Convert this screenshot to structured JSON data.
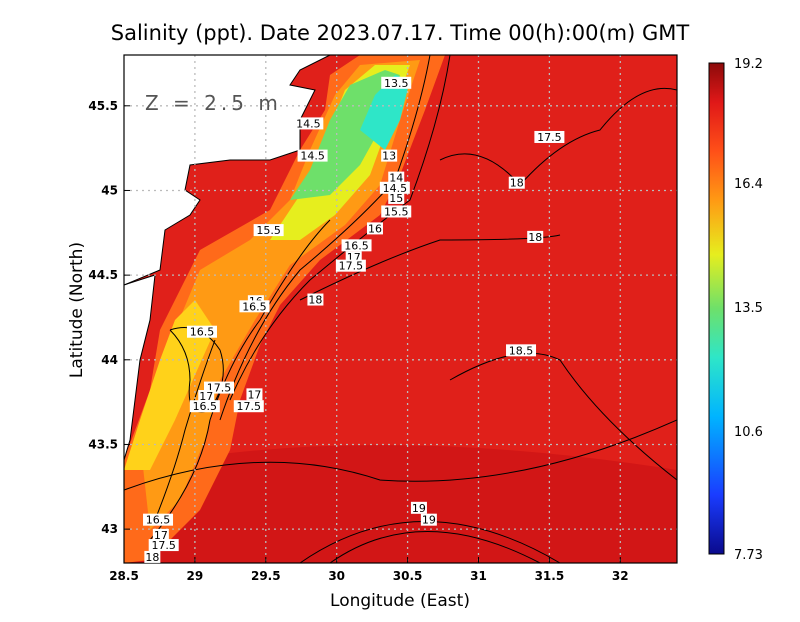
{
  "chart_data": {
    "type": "heatmap",
    "title": "Salinity (ppt). Date 2023.07.17. Time 00(h):00(m) GMT",
    "xlabel": "Longitude (East)",
    "ylabel": "Latitude (North)",
    "depth_label": "Z = 2.5 m",
    "xlim": [
      28.5,
      32.4
    ],
    "ylim": [
      42.8,
      45.8
    ],
    "x_ticks": [
      28.5,
      29,
      29.5,
      30,
      30.5,
      31,
      31.5,
      32
    ],
    "x_tick_labels": [
      "28.5",
      "29",
      "29.5",
      "30",
      "30.5",
      "31",
      "31.5",
      "32"
    ],
    "y_ticks": [
      43,
      43.5,
      44,
      44.5,
      45,
      45.5
    ],
    "y_tick_labels": [
      "43",
      "43.5",
      "44",
      "44.5",
      "45",
      "45.5"
    ],
    "grid": true,
    "colorbar": {
      "min": 7.73,
      "max": 19.2,
      "tick_values": [
        19.2,
        16.4,
        13.5,
        10.6,
        7.73
      ],
      "tick_labels": [
        "19.2",
        "16.4",
        "13.5",
        "10.6",
        "7.73"
      ],
      "colors": [
        "#0a0a8c",
        "#1a3cff",
        "#00b4ff",
        "#2ee6c8",
        "#6ee06a",
        "#e6ee1e",
        "#ff9a14",
        "#ff5018",
        "#e01818",
        "#8c0a0a"
      ]
    },
    "land_color": "#ffffff",
    "contour_labels": [
      {
        "text": "13.5",
        "lon": 30.42,
        "lat": 45.63
      },
      {
        "text": "14.5",
        "lon": 29.8,
        "lat": 45.39
      },
      {
        "text": "14.5",
        "lon": 29.83,
        "lat": 45.2
      },
      {
        "text": "13",
        "lon": 30.37,
        "lat": 45.2
      },
      {
        "text": "14",
        "lon": 30.42,
        "lat": 45.07
      },
      {
        "text": "14.5",
        "lon": 30.41,
        "lat": 45.01
      },
      {
        "text": "15",
        "lon": 30.42,
        "lat": 44.95
      },
      {
        "text": "15.5",
        "lon": 30.42,
        "lat": 44.87
      },
      {
        "text": "16",
        "lon": 30.27,
        "lat": 44.77
      },
      {
        "text": "15.5",
        "lon": 29.52,
        "lat": 44.76
      },
      {
        "text": "16.5",
        "lon": 30.14,
        "lat": 44.67
      },
      {
        "text": "17",
        "lon": 30.12,
        "lat": 44.6
      },
      {
        "text": "17.5",
        "lon": 30.1,
        "lat": 44.55
      },
      {
        "text": "17.5",
        "lon": 31.5,
        "lat": 45.31
      },
      {
        "text": "18",
        "lon": 31.27,
        "lat": 45.04
      },
      {
        "text": "18",
        "lon": 31.4,
        "lat": 44.72
      },
      {
        "text": "18",
        "lon": 29.85,
        "lat": 44.35
      },
      {
        "text": "16",
        "lon": 29.43,
        "lat": 44.34
      },
      {
        "text": "16.5",
        "lon": 29.42,
        "lat": 44.31
      },
      {
        "text": "16.5",
        "lon": 29.05,
        "lat": 44.16
      },
      {
        "text": "18.5",
        "lon": 31.3,
        "lat": 44.05
      },
      {
        "text": "17.5",
        "lon": 29.17,
        "lat": 43.83
      },
      {
        "text": "17",
        "lon": 29.08,
        "lat": 43.78
      },
      {
        "text": "17",
        "lon": 29.42,
        "lat": 43.79
      },
      {
        "text": "16.5",
        "lon": 29.07,
        "lat": 43.72
      },
      {
        "text": "17.5",
        "lon": 29.38,
        "lat": 43.72
      },
      {
        "text": "19",
        "lon": 30.58,
        "lat": 43.12
      },
      {
        "text": "19",
        "lon": 30.65,
        "lat": 43.05
      },
      {
        "text": "16.5",
        "lon": 28.74,
        "lat": 43.05
      },
      {
        "text": "17",
        "lon": 28.76,
        "lat": 42.96
      },
      {
        "text": "17.5",
        "lon": 28.78,
        "lat": 42.9
      },
      {
        "text": "18",
        "lon": 28.7,
        "lat": 42.83
      }
    ]
  }
}
